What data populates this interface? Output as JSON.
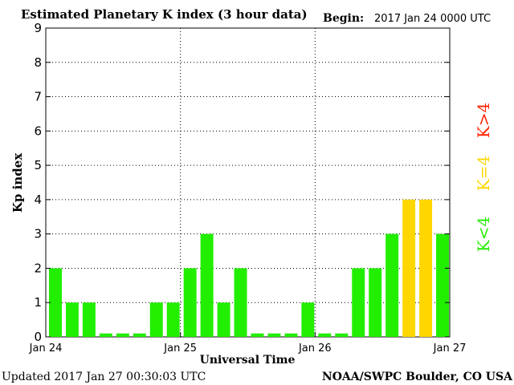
{
  "header": {
    "title": "Estimated Planetary K index (3 hour data)",
    "begin_label": "Begin:",
    "begin_value": "2017 Jan 24 0000 UTC"
  },
  "footer": {
    "updated": "Updated 2017 Jan 27 00:30:03 UTC",
    "source": "NOAA/SWPC Boulder, CO USA"
  },
  "legend": {
    "k_gt4": "K>4",
    "k_eq4": "K=4",
    "k_lt4": "K<4"
  },
  "colors": {
    "k_lt4": "#22ee00",
    "k_eq4": "#ffd700",
    "k_gt4": "#ff2200"
  },
  "chart_data": {
    "type": "bar",
    "title": "Estimated Planetary K index (3 hour data)",
    "xlabel": "Universal Time",
    "ylabel": "Kp index",
    "ylim": [
      0,
      9
    ],
    "yticks": [
      0,
      1,
      2,
      3,
      4,
      5,
      6,
      7,
      8,
      9
    ],
    "xticks": [
      "Jan 24",
      "Jan 25",
      "Jan 26",
      "Jan 27"
    ],
    "grid": true,
    "values": [
      2,
      1,
      1,
      0,
      0,
      0,
      1,
      1,
      2,
      3,
      1,
      2,
      0,
      0,
      0,
      1,
      0,
      0,
      2,
      2,
      3,
      4,
      4,
      3
    ]
  }
}
